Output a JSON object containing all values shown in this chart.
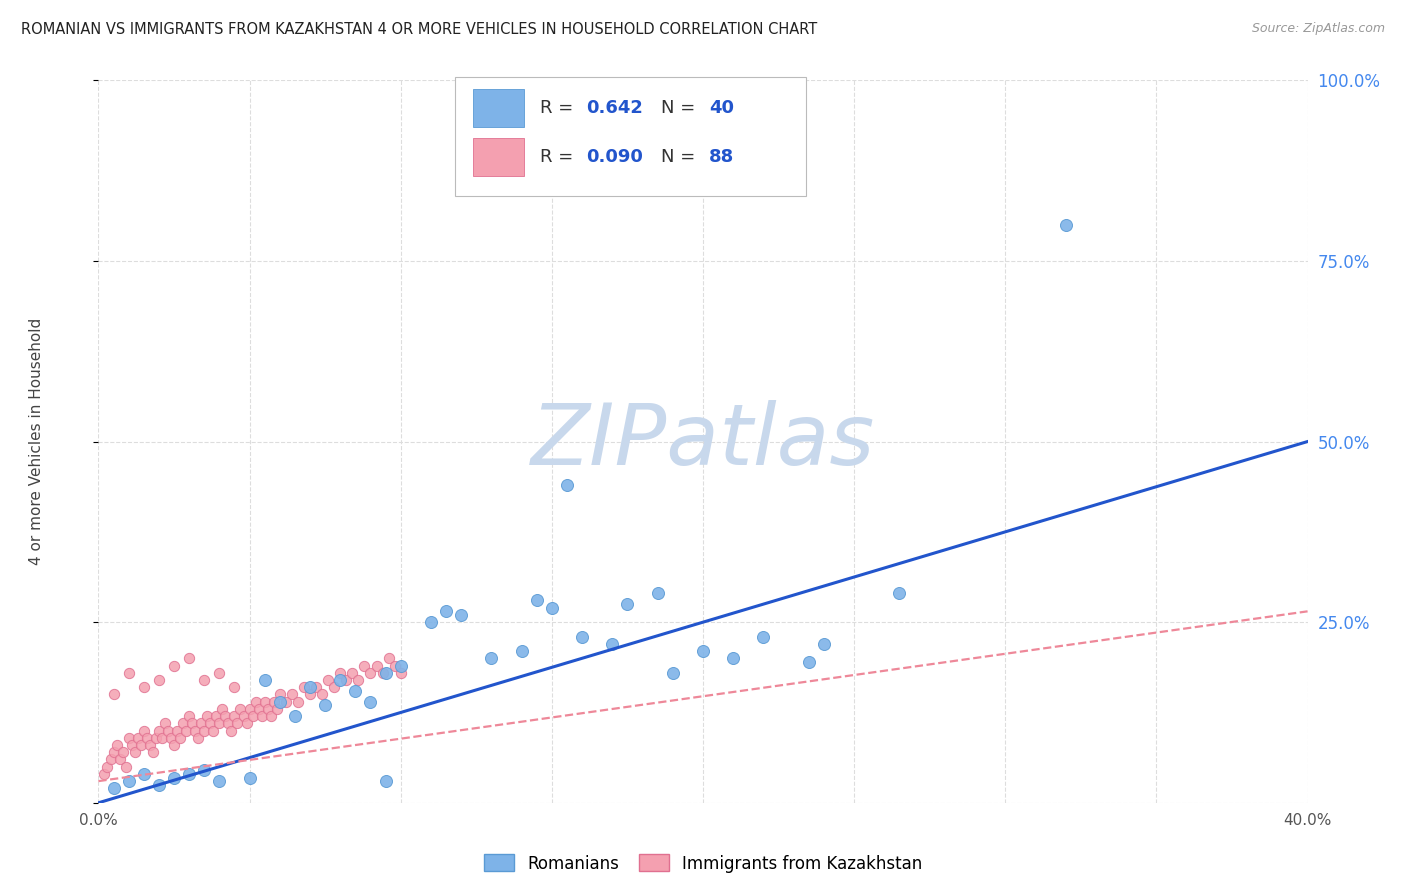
{
  "title": "ROMANIAN VS IMMIGRANTS FROM KAZAKHSTAN 4 OR MORE VEHICLES IN HOUSEHOLD CORRELATION CHART",
  "source": "Source: ZipAtlas.com",
  "ylabel": "4 or more Vehicles in Household",
  "xlim": [
    0.0,
    0.4
  ],
  "ylim": [
    0.0,
    1.0
  ],
  "xtick_positions": [
    0.0,
    0.05,
    0.1,
    0.15,
    0.2,
    0.25,
    0.3,
    0.35,
    0.4
  ],
  "xtick_labels": [
    "0.0%",
    "",
    "",
    "",
    "",
    "",
    "",
    "",
    "40.0%"
  ],
  "ytick_positions": [
    0.0,
    0.25,
    0.5,
    0.75,
    1.0
  ],
  "ytick_right_labels": [
    "",
    "25.0%",
    "50.0%",
    "75.0%",
    "100.0%"
  ],
  "blue_color": "#7EB3E8",
  "blue_edge_color": "#5A9AD4",
  "pink_color": "#F4A0B0",
  "pink_edge_color": "#E07090",
  "blue_line_color": "#2255CC",
  "pink_line_color": "#EE8899",
  "right_axis_color": "#4488EE",
  "watermark_text": "ZIPatlas",
  "watermark_color": "#C8D8EC",
  "title_color": "#222222",
  "source_color": "#999999",
  "grid_color": "#DDDDDD",
  "background_color": "#FFFFFF",
  "blue_line_x": [
    0.0,
    0.4
  ],
  "blue_line_y": [
    0.0,
    0.5
  ],
  "pink_line_x": [
    0.0,
    0.4
  ],
  "pink_line_y": [
    0.03,
    0.265
  ],
  "blue_scatter_x": [
    0.005,
    0.01,
    0.015,
    0.02,
    0.025,
    0.03,
    0.035,
    0.04,
    0.05,
    0.055,
    0.06,
    0.065,
    0.07,
    0.075,
    0.08,
    0.085,
    0.09,
    0.095,
    0.1,
    0.11,
    0.115,
    0.12,
    0.13,
    0.14,
    0.145,
    0.15,
    0.16,
    0.17,
    0.175,
    0.185,
    0.19,
    0.2,
    0.21,
    0.22,
    0.235,
    0.24,
    0.265,
    0.32,
    0.155,
    0.095
  ],
  "blue_scatter_y": [
    0.02,
    0.03,
    0.04,
    0.025,
    0.035,
    0.04,
    0.045,
    0.03,
    0.035,
    0.17,
    0.14,
    0.12,
    0.16,
    0.135,
    0.17,
    0.155,
    0.14,
    0.18,
    0.19,
    0.25,
    0.265,
    0.26,
    0.2,
    0.21,
    0.28,
    0.27,
    0.23,
    0.22,
    0.275,
    0.29,
    0.18,
    0.21,
    0.2,
    0.23,
    0.195,
    0.22,
    0.29,
    0.8,
    0.44,
    0.03
  ],
  "pink_scatter_x": [
    0.002,
    0.003,
    0.004,
    0.005,
    0.006,
    0.007,
    0.008,
    0.009,
    0.01,
    0.011,
    0.012,
    0.013,
    0.014,
    0.015,
    0.016,
    0.017,
    0.018,
    0.019,
    0.02,
    0.021,
    0.022,
    0.023,
    0.024,
    0.025,
    0.026,
    0.027,
    0.028,
    0.029,
    0.03,
    0.031,
    0.032,
    0.033,
    0.034,
    0.035,
    0.036,
    0.037,
    0.038,
    0.039,
    0.04,
    0.041,
    0.042,
    0.043,
    0.044,
    0.045,
    0.046,
    0.047,
    0.048,
    0.049,
    0.05,
    0.051,
    0.052,
    0.053,
    0.054,
    0.055,
    0.056,
    0.057,
    0.058,
    0.059,
    0.06,
    0.062,
    0.064,
    0.066,
    0.068,
    0.07,
    0.072,
    0.074,
    0.076,
    0.078,
    0.08,
    0.082,
    0.084,
    0.086,
    0.088,
    0.09,
    0.092,
    0.094,
    0.096,
    0.098,
    0.1,
    0.005,
    0.01,
    0.015,
    0.02,
    0.025,
    0.03,
    0.035,
    0.04,
    0.045
  ],
  "pink_scatter_y": [
    0.04,
    0.05,
    0.06,
    0.07,
    0.08,
    0.06,
    0.07,
    0.05,
    0.09,
    0.08,
    0.07,
    0.09,
    0.08,
    0.1,
    0.09,
    0.08,
    0.07,
    0.09,
    0.1,
    0.09,
    0.11,
    0.1,
    0.09,
    0.08,
    0.1,
    0.09,
    0.11,
    0.1,
    0.12,
    0.11,
    0.1,
    0.09,
    0.11,
    0.1,
    0.12,
    0.11,
    0.1,
    0.12,
    0.11,
    0.13,
    0.12,
    0.11,
    0.1,
    0.12,
    0.11,
    0.13,
    0.12,
    0.11,
    0.13,
    0.12,
    0.14,
    0.13,
    0.12,
    0.14,
    0.13,
    0.12,
    0.14,
    0.13,
    0.15,
    0.14,
    0.15,
    0.14,
    0.16,
    0.15,
    0.16,
    0.15,
    0.17,
    0.16,
    0.18,
    0.17,
    0.18,
    0.17,
    0.19,
    0.18,
    0.19,
    0.18,
    0.2,
    0.19,
    0.18,
    0.15,
    0.18,
    0.16,
    0.17,
    0.19,
    0.2,
    0.17,
    0.18,
    0.16
  ]
}
